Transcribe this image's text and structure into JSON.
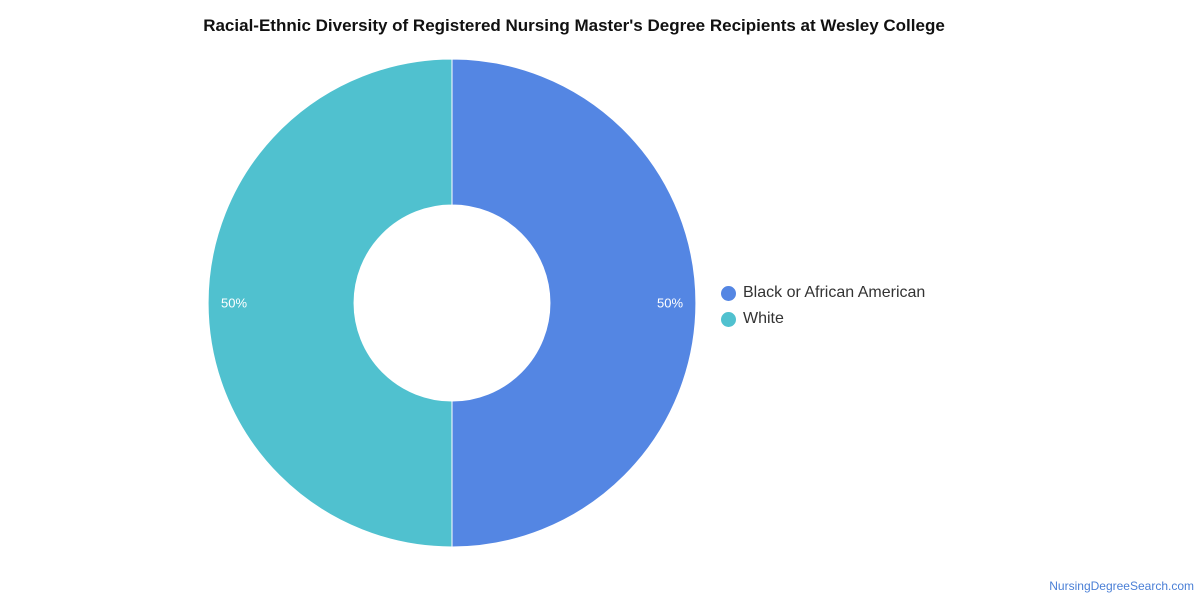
{
  "title": "Racial-Ethnic Diversity of Registered Nursing Master's Degree Recipients at Wesley College",
  "watermark": "NursingDegreeSearch.com",
  "chart_data": {
    "type": "pie",
    "variant": "donut",
    "title": "Racial-Ethnic Diversity of Registered Nursing Master's Degree Recipients at Wesley College",
    "legend_position": "right",
    "categories": [
      "Black or African American",
      "White"
    ],
    "values": [
      50,
      50
    ],
    "labels": [
      "50%",
      "50%"
    ],
    "colors": [
      "#5486e3",
      "#50c1cf"
    ]
  }
}
